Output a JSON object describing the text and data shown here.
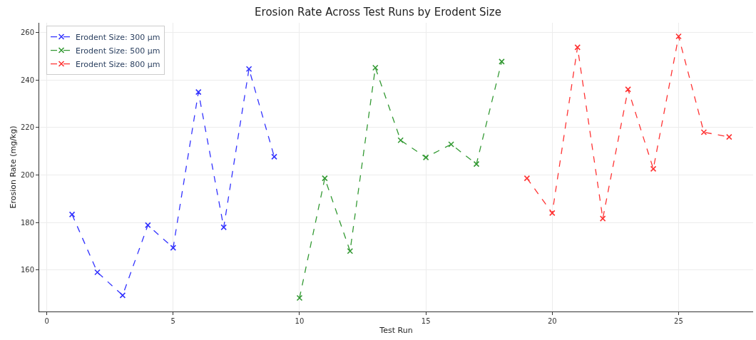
{
  "chart_data": {
    "type": "line",
    "title": "Erosion Rate Across Test Runs by Erodent Size",
    "xlabel": "Test Run",
    "ylabel": "Erosion Rate (mg/kg)",
    "series": [
      {
        "name": "Erodent Size: 300 µm",
        "color": "#0000ff",
        "x": [
          1,
          2,
          3,
          4,
          5,
          6,
          7,
          8,
          9
        ],
        "values": [
          183.4,
          159.1,
          149.4,
          178.9,
          169.4,
          234.9,
          178.0,
          244.6,
          207.7
        ]
      },
      {
        "name": "Erodent Size: 500 µm",
        "color": "#008000",
        "x": [
          10,
          11,
          12,
          13,
          14,
          15,
          16,
          17,
          18
        ],
        "values": [
          148.3,
          198.6,
          168.0,
          245.1,
          214.6,
          207.4,
          212.9,
          204.6,
          247.7
        ]
      },
      {
        "name": "Erodent Size: 800 µm",
        "color": "#ff0000",
        "x": [
          19,
          20,
          21,
          22,
          23,
          24,
          25,
          26,
          27
        ],
        "values": [
          198.6,
          184.0,
          253.7,
          181.7,
          236.0,
          202.6,
          258.3,
          218.0,
          216.0
        ]
      }
    ],
    "xlim": [
      -0.3,
      27.95
    ],
    "ylim": [
      142.6,
      264
    ],
    "xticks": [
      0,
      5,
      10,
      15,
      20,
      25
    ],
    "yticks": [
      160,
      180,
      200,
      220,
      240,
      260
    ],
    "grid": true,
    "legend": "top left",
    "marker": "cross",
    "line_style": "dashed"
  }
}
